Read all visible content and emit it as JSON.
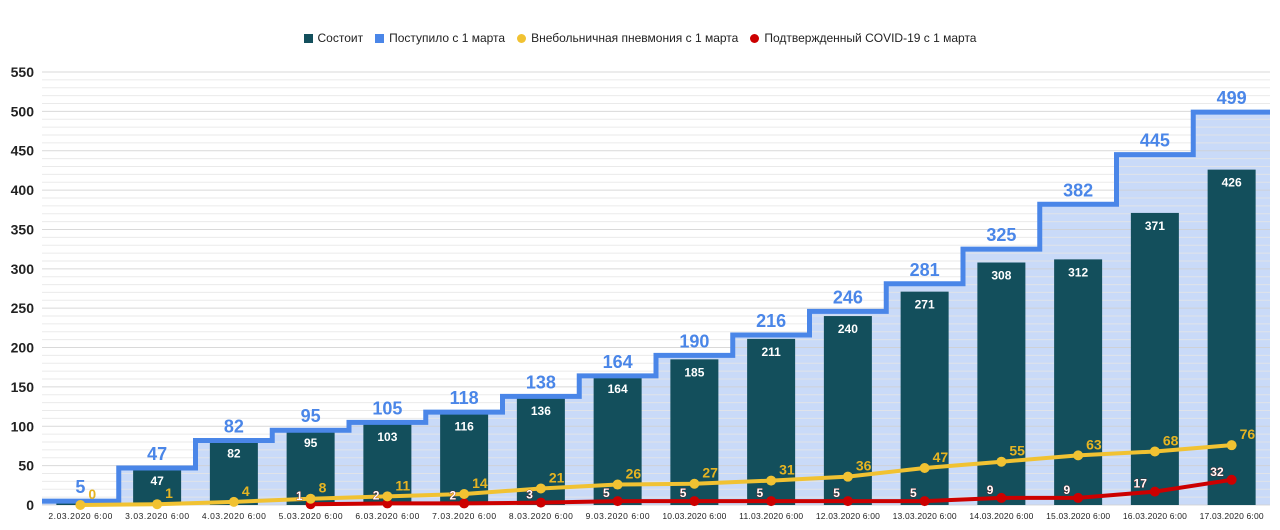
{
  "chart_data": {
    "type": "bar",
    "categories": [
      "2.03.2020  6:00",
      "3.03.2020  6:00",
      "4.03.2020  6:00",
      "5.03.2020  6:00",
      "6.03.2020  6:00",
      "7.03.2020  6:00",
      "8.03.2020  6:00",
      "9.03.2020  6:00",
      "10.03.2020  6:00",
      "11.03.2020  6:00",
      "12.03.2020  6:00",
      "13.03.2020  6:00",
      "14.03.2020  6:00",
      "15.03.2020  6:00",
      "16.03.2020  6:00",
      "17.03.2020  6:00"
    ],
    "series": [
      {
        "name": "Состоит",
        "kind": "bar",
        "color": "#134f5c",
        "values": [
          3,
          47,
          82,
          95,
          103,
          116,
          136,
          164,
          185,
          211,
          240,
          271,
          308,
          312,
          371,
          426
        ]
      },
      {
        "name": "Поступило с 1 марта",
        "kind": "step",
        "color": "#4a86e8",
        "fill": "#c9daf8",
        "values": [
          5,
          47,
          82,
          95,
          105,
          118,
          138,
          164,
          190,
          216,
          246,
          281,
          325,
          382,
          445,
          499
        ]
      },
      {
        "name": "Внебольничная пневмония с 1 марта",
        "kind": "line",
        "color": "#f1c232",
        "values": [
          0,
          1,
          4,
          8,
          11,
          14,
          21,
          26,
          27,
          31,
          36,
          47,
          55,
          63,
          68,
          76
        ]
      },
      {
        "name": "Подтвержденный COVID-19 с 1 марта",
        "kind": "line",
        "color": "#cc0000",
        "values": [
          0,
          0,
          0,
          1,
          2,
          2,
          3,
          5,
          5,
          5,
          5,
          5,
          9,
          9,
          17,
          32
        ]
      }
    ],
    "yticks": [
      "0",
      "50",
      "100",
      "150",
      "200",
      "250",
      "300",
      "350",
      "400",
      "450",
      "500",
      "550"
    ],
    "ylim": [
      0,
      550
    ],
    "grid": true,
    "legend_position": "top-center",
    "title": "",
    "xlabel": "",
    "ylabel": ""
  }
}
